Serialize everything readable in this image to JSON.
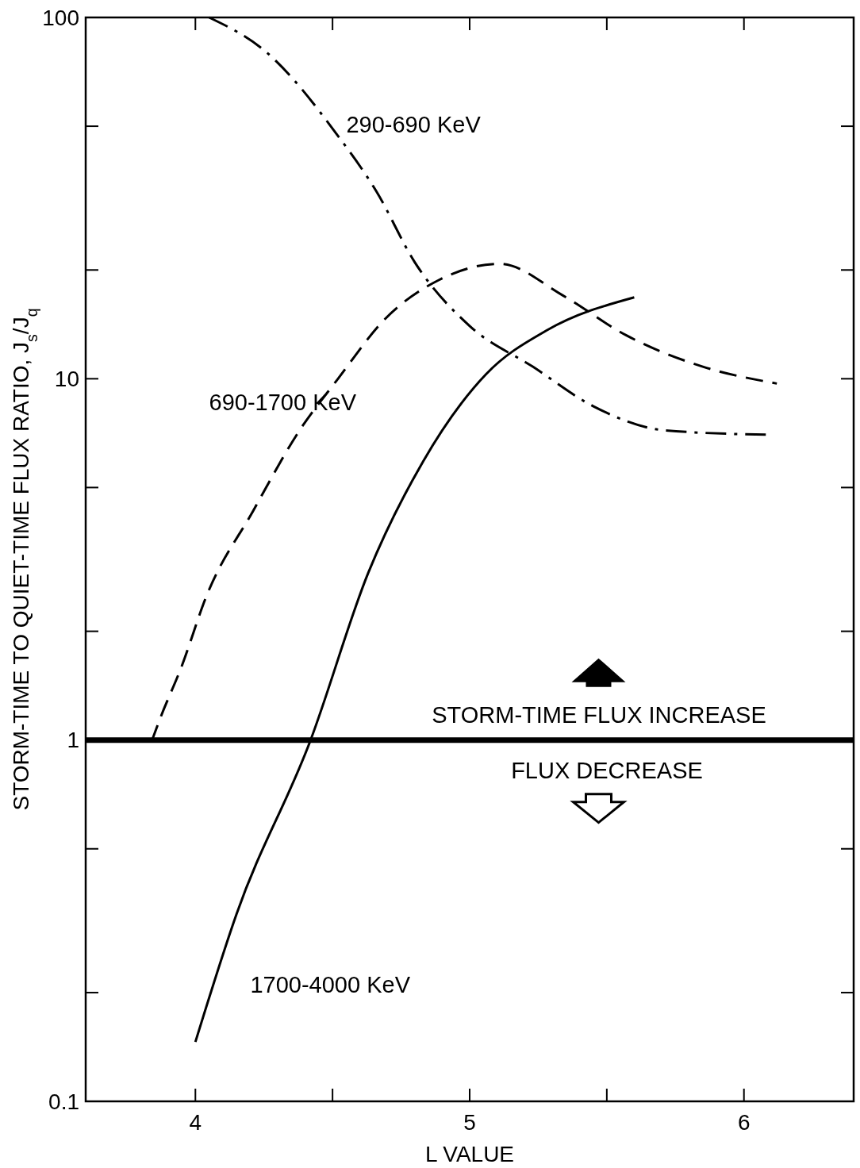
{
  "chart_data": {
    "type": "line",
    "xlabel": "L VALUE",
    "ylabel": "STORM-TIME TO QUIET-TIME FLUX RATIO, J$_{s}$/J$_{q}$",
    "log": "y",
    "xlim": [
      3.6,
      6.4
    ],
    "xticks": [
      4,
      {
        "value": 4.5,
        "label": null
      },
      5,
      {
        "value": 5.5,
        "label": null
      },
      6
    ],
    "ylim": [
      0.1,
      100
    ],
    "yticks": [
      {
        "value": 0.1,
        "label": "0.1"
      },
      {
        "value": 0.2,
        "label": null
      },
      {
        "value": 0.5,
        "label": null
      },
      1,
      {
        "value": 2,
        "label": null
      },
      {
        "value": 5,
        "label": null
      },
      10,
      {
        "value": 20,
        "label": null
      },
      {
        "value": 50,
        "label": null
      },
      100
    ],
    "series": [
      {
        "name": "290-690 KeV",
        "color": "#000000",
        "line_style": "dashdot",
        "x": [
          4.05,
          4.26,
          4.52,
          4.66,
          4.8,
          5.0,
          5.23,
          5.45,
          5.71,
          6.08
        ],
        "values": [
          100,
          80,
          47,
          33,
          21,
          14,
          10.8,
          8.4,
          7.2,
          7.0
        ]
      },
      {
        "name": "690-1700 KeV",
        "color": "#000000",
        "line_style": "dashed",
        "x": [
          3.84,
          3.87,
          3.95,
          4.04,
          4.21,
          4.38,
          4.52,
          4.69,
          4.89,
          5.11,
          5.34,
          5.57,
          5.85,
          6.12
        ],
        "values": [
          0.99,
          1.14,
          1.6,
          2.5,
          4.3,
          7.2,
          10,
          14.6,
          18.8,
          20.8,
          17,
          13.2,
          10.8,
          9.7
        ]
      },
      {
        "name": "1700-4000 KeV",
        "color": "#000000",
        "line_style": "solid",
        "x": [
          4.0,
          4.15,
          4.42,
          4.63,
          4.83,
          5.06,
          5.28,
          5.6
        ],
        "values": [
          0.146,
          0.33,
          1.0,
          2.9,
          5.9,
          10.3,
          13.6,
          16.8
        ]
      }
    ],
    "ref_lines": [
      {
        "axis": "y",
        "value": 1,
        "color": "#000000"
      }
    ],
    "annotations": [
      "STORM-TIME FLUX INCREASE",
      "FLUX DECREASE"
    ]
  }
}
